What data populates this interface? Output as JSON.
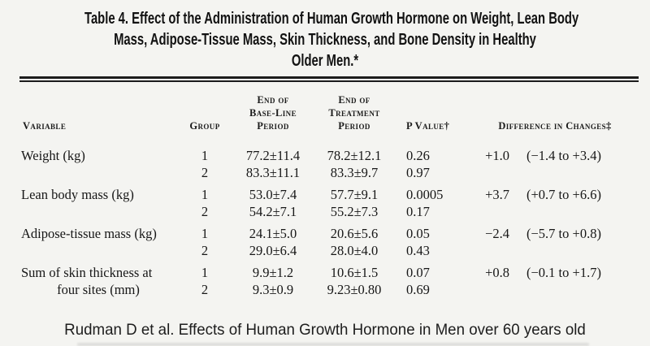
{
  "colors": {
    "background": "#f4f4f1",
    "ink": "#1a1a1a"
  },
  "title_lines": [
    "Table 4. Effect of the Administration of Human Growth Hormone on Weight, Lean Body",
    "Mass, Adipose-Tissue Mass, Skin Thickness, and Bone Density in Healthy",
    "Older Men.*"
  ],
  "table": {
    "headers": {
      "variable": "Variable",
      "group": "Group",
      "baseline_lines": [
        "End of",
        "Base-Line",
        "Period"
      ],
      "treatment_lines": [
        "End of",
        "Treatment",
        "Period"
      ],
      "pvalue": "P Value†",
      "difference": "Difference in Changes‡"
    },
    "rows": [
      {
        "variable_lines": [
          "Weight (kg)",
          ""
        ],
        "group1": {
          "group": "1",
          "baseline": "77.2±11.4",
          "treatment": "78.2±12.1",
          "p": "0.26"
        },
        "group2": {
          "group": "2",
          "baseline": "83.3±11.1",
          "treatment": "83.3±9.7",
          "p": "0.97"
        },
        "difference": "+1.0",
        "ci": "(−1.4 to +3.4)"
      },
      {
        "variable_lines": [
          "Lean body mass (kg)",
          ""
        ],
        "group1": {
          "group": "1",
          "baseline": "53.0±7.4",
          "treatment": "57.7±9.1",
          "p": "0.0005"
        },
        "group2": {
          "group": "2",
          "baseline": "54.2±7.1",
          "treatment": "55.2±7.3",
          "p": "0.17"
        },
        "difference": "+3.7",
        "ci": "(+0.7 to +6.6)"
      },
      {
        "variable_lines": [
          "Adipose-tissue mass (kg)",
          ""
        ],
        "group1": {
          "group": "1",
          "baseline": "24.1±5.0",
          "treatment": "20.6±5.6",
          "p": "0.05"
        },
        "group2": {
          "group": "2",
          "baseline": "29.0±6.4",
          "treatment": "28.0±4.0",
          "p": "0.43"
        },
        "difference": "−2.4",
        "ci": "(−5.7 to +0.8)"
      },
      {
        "variable_lines": [
          "Sum of skin thickness at",
          "four sites (mm)"
        ],
        "group1": {
          "group": "1",
          "baseline": "9.9±1.2",
          "treatment": "10.6±1.5",
          "p": "0.07"
        },
        "group2": {
          "group": "2",
          "baseline": "9.3±0.9",
          "treatment": "9.23±0.80",
          "p": "0.69"
        },
        "difference": "+0.8",
        "ci": "(−0.1 to +1.7)"
      }
    ]
  },
  "caption": "Rudman D et al. Effects of Human Growth Hormone in Men over 60 years old"
}
